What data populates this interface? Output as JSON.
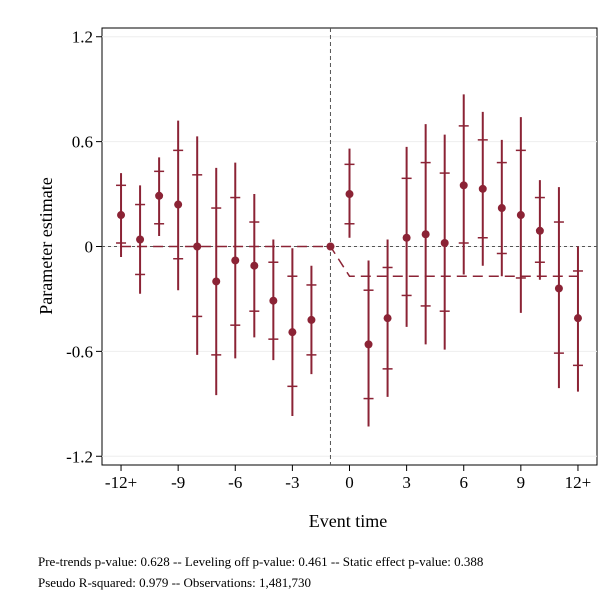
{
  "chart_data": {
    "type": "scatter",
    "title": "",
    "xlabel": "Event time",
    "ylabel": "Parameter estimate",
    "xlim": [
      -13,
      13
    ],
    "ylim": [
      -1.25,
      1.25
    ],
    "grid": true,
    "legend": "none",
    "x_ticks": [
      {
        "value": -12,
        "label": "-12+"
      },
      {
        "value": -9,
        "label": "-9"
      },
      {
        "value": -6,
        "label": "-6"
      },
      {
        "value": -3,
        "label": "-3"
      },
      {
        "value": 0,
        "label": "0"
      },
      {
        "value": 3,
        "label": "3"
      },
      {
        "value": 6,
        "label": "6"
      },
      {
        "value": 9,
        "label": "9"
      },
      {
        "value": 12,
        "label": "12+"
      }
    ],
    "y_ticks": [
      {
        "value": 1.2,
        "label": "1.2"
      },
      {
        "value": 0.6,
        "label": "0.6"
      },
      {
        "value": 0,
        "label": "0"
      },
      {
        "value": -0.6,
        "label": "-0.6"
      },
      {
        "value": -1.2,
        "label": "-1.2"
      }
    ],
    "reference_vline_x": -1,
    "reference_hline_y": 0,
    "series": [
      {
        "points": [
          {
            "x": -12,
            "y": 0.18,
            "ci_outer": [
              -0.06,
              0.42
            ],
            "ci_inner": [
              0.02,
              0.35
            ]
          },
          {
            "x": -11,
            "y": 0.04,
            "ci_outer": [
              -0.27,
              0.35
            ],
            "ci_inner": [
              -0.16,
              0.24
            ]
          },
          {
            "x": -10,
            "y": 0.29,
            "ci_outer": [
              0.06,
              0.51
            ],
            "ci_inner": [
              0.13,
              0.43
            ]
          },
          {
            "x": -9,
            "y": 0.24,
            "ci_outer": [
              -0.25,
              0.72
            ],
            "ci_inner": [
              -0.07,
              0.55
            ]
          },
          {
            "x": -8,
            "y": 0.0,
            "ci_outer": [
              -0.62,
              0.63
            ],
            "ci_inner": [
              -0.4,
              0.41
            ]
          },
          {
            "x": -7,
            "y": -0.2,
            "ci_outer": [
              -0.85,
              0.45
            ],
            "ci_inner": [
              -0.62,
              0.22
            ]
          },
          {
            "x": -6,
            "y": -0.08,
            "ci_outer": [
              -0.64,
              0.48
            ],
            "ci_inner": [
              -0.45,
              0.28
            ]
          },
          {
            "x": -5,
            "y": -0.11,
            "ci_outer": [
              -0.52,
              0.3
            ],
            "ci_inner": [
              -0.37,
              0.14
            ]
          },
          {
            "x": -4,
            "y": -0.31,
            "ci_outer": [
              -0.65,
              0.04
            ],
            "ci_inner": [
              -0.53,
              -0.09
            ]
          },
          {
            "x": -3,
            "y": -0.49,
            "ci_outer": [
              -0.97,
              -0.01
            ],
            "ci_inner": [
              -0.8,
              -0.17
            ]
          },
          {
            "x": -2,
            "y": -0.42,
            "ci_outer": [
              -0.73,
              -0.11
            ],
            "ci_inner": [
              -0.62,
              -0.22
            ]
          },
          {
            "x": -1,
            "y": 0.0,
            "ci_outer": [
              0.0,
              0.0
            ],
            "ci_inner": [
              0.0,
              0.0
            ]
          },
          {
            "x": 0,
            "y": 0.3,
            "ci_outer": [
              0.05,
              0.56
            ],
            "ci_inner": [
              0.13,
              0.47
            ]
          },
          {
            "x": 1,
            "y": -0.56,
            "ci_outer": [
              -1.03,
              -0.08
            ],
            "ci_inner": [
              -0.87,
              -0.25
            ]
          },
          {
            "x": 2,
            "y": -0.41,
            "ci_outer": [
              -0.86,
              0.04
            ],
            "ci_inner": [
              -0.7,
              -0.12
            ]
          },
          {
            "x": 3,
            "y": 0.05,
            "ci_outer": [
              -0.46,
              0.57
            ],
            "ci_inner": [
              -0.28,
              0.39
            ]
          },
          {
            "x": 4,
            "y": 0.07,
            "ci_outer": [
              -0.56,
              0.7
            ],
            "ci_inner": [
              -0.34,
              0.48
            ]
          },
          {
            "x": 5,
            "y": 0.02,
            "ci_outer": [
              -0.59,
              0.64
            ],
            "ci_inner": [
              -0.37,
              0.42
            ]
          },
          {
            "x": 6,
            "y": 0.35,
            "ci_outer": [
              -0.16,
              0.87
            ],
            "ci_inner": [
              0.02,
              0.69
            ]
          },
          {
            "x": 7,
            "y": 0.33,
            "ci_outer": [
              -0.11,
              0.77
            ],
            "ci_inner": [
              0.05,
              0.61
            ]
          },
          {
            "x": 8,
            "y": 0.22,
            "ci_outer": [
              -0.17,
              0.61
            ],
            "ci_inner": [
              -0.04,
              0.48
            ]
          },
          {
            "x": 9,
            "y": 0.18,
            "ci_outer": [
              -0.38,
              0.74
            ],
            "ci_inner": [
              -0.18,
              0.55
            ]
          },
          {
            "x": 10,
            "y": 0.09,
            "ci_outer": [
              -0.19,
              0.38
            ],
            "ci_inner": [
              -0.09,
              0.28
            ]
          },
          {
            "x": 11,
            "y": -0.24,
            "ci_outer": [
              -0.81,
              0.34
            ],
            "ci_inner": [
              -0.61,
              0.14
            ]
          },
          {
            "x": 12,
            "y": -0.41,
            "ci_outer": [
              -0.83,
              0.0
            ],
            "ci_inner": [
              -0.68,
              -0.14
            ]
          }
        ]
      }
    ],
    "fitted_line": [
      {
        "x": -12,
        "y": 0.0
      },
      {
        "x": -1,
        "y": 0.0
      },
      {
        "x": 0,
        "y": -0.17
      },
      {
        "x": 12,
        "y": -0.17
      }
    ],
    "colors": {
      "series": "#8b2335",
      "reference": "#555555",
      "grid": "#eeeeee"
    }
  },
  "notes": {
    "line1": "Pre-trends p-value: 0.628 -- Leveling off p-value: 0.461 -- Static effect p-value: 0.388",
    "line2": "Pseudo R-squared: 0.979 -- Observations: 1,481,730"
  }
}
